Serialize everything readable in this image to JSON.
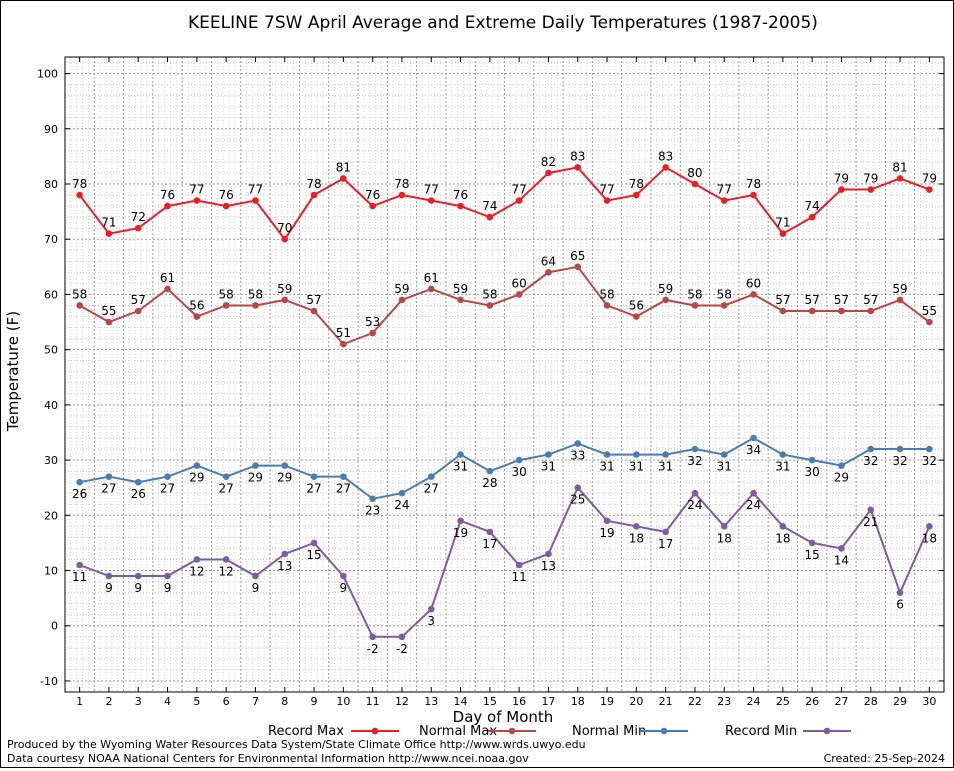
{
  "chart_data": {
    "type": "line",
    "title": "KEELINE 7SW April Average and Extreme Daily Temperatures (1987-2005)",
    "xlabel": "Day of Month",
    "ylabel": "Temperature (F)",
    "ylim": [
      -12,
      103
    ],
    "yticks": [
      -10,
      0,
      10,
      20,
      30,
      40,
      50,
      60,
      70,
      80,
      90,
      100
    ],
    "x": [
      1,
      2,
      3,
      4,
      5,
      6,
      7,
      8,
      9,
      10,
      11,
      12,
      13,
      14,
      15,
      16,
      17,
      18,
      19,
      20,
      21,
      22,
      23,
      24,
      25,
      26,
      27,
      28,
      29,
      30
    ],
    "grid": true,
    "legend": "bottom",
    "series": [
      {
        "name": "Record Max",
        "color": "#ee1c25",
        "values": [
          78,
          71,
          72,
          76,
          77,
          76,
          77,
          70,
          78,
          81,
          76,
          78,
          77,
          76,
          74,
          77,
          82,
          83,
          77,
          78,
          83,
          80,
          77,
          78,
          71,
          74,
          79,
          79,
          81,
          79
        ]
      },
      {
        "name": "Normal Max",
        "color": "#b94747",
        "values": [
          58,
          55,
          57,
          61,
          56,
          58,
          58,
          59,
          57,
          51,
          53,
          59,
          61,
          59,
          58,
          60,
          64,
          65,
          58,
          56,
          59,
          58,
          58,
          60,
          57,
          57,
          57,
          57,
          59,
          55
        ]
      },
      {
        "name": "Normal Min",
        "color": "#4a7eb0",
        "values": [
          26,
          27,
          26,
          27,
          29,
          27,
          29,
          29,
          27,
          27,
          23,
          24,
          27,
          31,
          28,
          30,
          31,
          33,
          31,
          31,
          31,
          32,
          31,
          34,
          31,
          30,
          29,
          32,
          32,
          32
        ]
      },
      {
        "name": "Record Min",
        "color": "#7f5c9f",
        "values": [
          11,
          9,
          9,
          9,
          12,
          12,
          9,
          13,
          15,
          9,
          -2,
          -2,
          3,
          19,
          17,
          11,
          13,
          25,
          19,
          18,
          17,
          24,
          18,
          24,
          18,
          15,
          14,
          21,
          6,
          18
        ]
      }
    ]
  },
  "footer": {
    "produced_by": "Produced by the Wyoming Water Resources Data System/State Climate Office http://www.wrds.uwyo.edu",
    "data_courtesy": "Data courtesy NOAA National Centers for Environmental Information http://www.ncei.noaa.gov",
    "created": "Created:  25-Sep-2024"
  }
}
